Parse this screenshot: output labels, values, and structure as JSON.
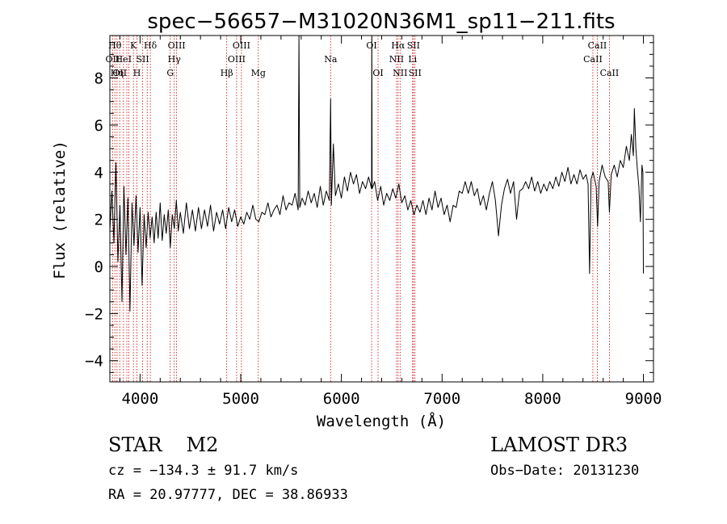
{
  "chart_data": {
    "type": "line",
    "title": "spec−56657−M31020N36M1_sp11−211.fits",
    "xlabel": "Wavelength (Å)",
    "ylabel": "Flux (relative)",
    "xlim": [
      3700,
      9100
    ],
    "ylim": [
      -4.9,
      9.8
    ],
    "x_ticks": [
      4000,
      5000,
      6000,
      7000,
      8000,
      9000
    ],
    "x_tick_labels": [
      "4000",
      "5000",
      "6000",
      "7000",
      "8000",
      "9000"
    ],
    "y_ticks": [
      -4,
      -2,
      0,
      2,
      4,
      6,
      8
    ],
    "y_tick_labels": [
      "−4",
      "−2",
      "0",
      "2",
      "4",
      "6",
      "8"
    ],
    "grid": false,
    "series": [
      {
        "color": "#000000",
        "points": [
          [
            3700,
            1.5
          ],
          [
            3720,
            3.2
          ],
          [
            3740,
            1.0
          ],
          [
            3760,
            4.4
          ],
          [
            3780,
            0.2
          ],
          [
            3800,
            2.6
          ],
          [
            3820,
            -1.5
          ],
          [
            3840,
            3.4
          ],
          [
            3860,
            0.5
          ],
          [
            3880,
            2.9
          ],
          [
            3900,
            -1.9
          ],
          [
            3920,
            2.7
          ],
          [
            3940,
            0.9
          ],
          [
            3960,
            3.0
          ],
          [
            3980,
            0.6
          ],
          [
            4000,
            2.5
          ],
          [
            4020,
            -0.8
          ],
          [
            4040,
            2.2
          ],
          [
            4060,
            0.8
          ],
          [
            4080,
            2.3
          ],
          [
            4100,
            1.2
          ],
          [
            4120,
            2.1
          ],
          [
            4140,
            1.0
          ],
          [
            4160,
            2.3
          ],
          [
            4180,
            1.2
          ],
          [
            4200,
            2.7
          ],
          [
            4220,
            1.1
          ],
          [
            4240,
            2.2
          ],
          [
            4260,
            1.4
          ],
          [
            4280,
            2.4
          ],
          [
            4300,
            0.8
          ],
          [
            4320,
            2.2
          ],
          [
            4340,
            1.6
          ],
          [
            4360,
            2.8
          ],
          [
            4380,
            1.5
          ],
          [
            4400,
            2.3
          ],
          [
            4430,
            1.4
          ],
          [
            4460,
            2.7
          ],
          [
            4490,
            1.6
          ],
          [
            4520,
            2.4
          ],
          [
            4550,
            1.5
          ],
          [
            4580,
            2.5
          ],
          [
            4610,
            1.6
          ],
          [
            4640,
            2.4
          ],
          [
            4670,
            1.7
          ],
          [
            4700,
            2.6
          ],
          [
            4730,
            1.5
          ],
          [
            4760,
            2.3
          ],
          [
            4790,
            1.8
          ],
          [
            4820,
            2.4
          ],
          [
            4850,
            1.6
          ],
          [
            4880,
            2.5
          ],
          [
            4910,
            1.9
          ],
          [
            4940,
            2.4
          ],
          [
            4970,
            1.7
          ],
          [
            5000,
            2.1
          ],
          [
            5030,
            1.8
          ],
          [
            5060,
            2.3
          ],
          [
            5090,
            2.0
          ],
          [
            5120,
            2.6
          ],
          [
            5150,
            2.0
          ],
          [
            5180,
            1.9
          ],
          [
            5210,
            2.3
          ],
          [
            5240,
            2.2
          ],
          [
            5270,
            2.7
          ],
          [
            5300,
            2.1
          ],
          [
            5330,
            2.4
          ],
          [
            5360,
            2.6
          ],
          [
            5390,
            2.2
          ],
          [
            5420,
            3.0
          ],
          [
            5450,
            2.4
          ],
          [
            5480,
            2.7
          ],
          [
            5510,
            2.6
          ],
          [
            5540,
            3.1
          ],
          [
            5570,
            2.4
          ],
          [
            5578,
            9.8
          ],
          [
            5586,
            2.5
          ],
          [
            5610,
            2.9
          ],
          [
            5640,
            2.6
          ],
          [
            5670,
            3.2
          ],
          [
            5700,
            2.7
          ],
          [
            5730,
            3.1
          ],
          [
            5760,
            2.5
          ],
          [
            5790,
            3.4
          ],
          [
            5820,
            2.6
          ],
          [
            5850,
            3.2
          ],
          [
            5880,
            2.8
          ],
          [
            5893,
            7.1
          ],
          [
            5900,
            2.6
          ],
          [
            5920,
            5.2
          ],
          [
            5940,
            3.0
          ],
          [
            5970,
            3.5
          ],
          [
            6000,
            2.9
          ],
          [
            6030,
            3.8
          ],
          [
            6060,
            3.2
          ],
          [
            6090,
            4.0
          ],
          [
            6120,
            3.5
          ],
          [
            6150,
            3.9
          ],
          [
            6180,
            3.1
          ],
          [
            6210,
            3.6
          ],
          [
            6240,
            3.3
          ],
          [
            6270,
            3.8
          ],
          [
            6300,
            3.3
          ],
          [
            6302,
            9.8
          ],
          [
            6305,
            3.3
          ],
          [
            6330,
            3.6
          ],
          [
            6360,
            2.8
          ],
          [
            6390,
            3.4
          ],
          [
            6420,
            2.6
          ],
          [
            6450,
            3.1
          ],
          [
            6480,
            2.8
          ],
          [
            6510,
            3.3
          ],
          [
            6540,
            2.9
          ],
          [
            6570,
            3.5
          ],
          [
            6600,
            2.7
          ],
          [
            6630,
            3.0
          ],
          [
            6660,
            2.4
          ],
          [
            6690,
            2.8
          ],
          [
            6720,
            2.2
          ],
          [
            6750,
            2.6
          ],
          [
            6780,
            2.3
          ],
          [
            6810,
            2.8
          ],
          [
            6840,
            2.2
          ],
          [
            6870,
            2.9
          ],
          [
            6900,
            2.4
          ],
          [
            6930,
            3.2
          ],
          [
            6960,
            2.5
          ],
          [
            6990,
            2.9
          ],
          [
            7020,
            2.2
          ],
          [
            7050,
            2.6
          ],
          [
            7080,
            1.9
          ],
          [
            7110,
            2.6
          ],
          [
            7140,
            2.5
          ],
          [
            7170,
            3.2
          ],
          [
            7200,
            3.1
          ],
          [
            7230,
            3.6
          ],
          [
            7260,
            3.1
          ],
          [
            7290,
            3.6
          ],
          [
            7320,
            3.0
          ],
          [
            7350,
            3.3
          ],
          [
            7380,
            2.6
          ],
          [
            7410,
            3.0
          ],
          [
            7440,
            2.4
          ],
          [
            7470,
            3.1
          ],
          [
            7500,
            3.6
          ],
          [
            7530,
            2.8
          ],
          [
            7560,
            1.3
          ],
          [
            7590,
            2.6
          ],
          [
            7620,
            3.3
          ],
          [
            7650,
            3.7
          ],
          [
            7680,
            3.1
          ],
          [
            7710,
            3.6
          ],
          [
            7740,
            2.0
          ],
          [
            7770,
            3.2
          ],
          [
            7800,
            3.3
          ],
          [
            7830,
            3.6
          ],
          [
            7860,
            3.3
          ],
          [
            7890,
            3.8
          ],
          [
            7920,
            3.2
          ],
          [
            7950,
            3.6
          ],
          [
            7980,
            3.1
          ],
          [
            8010,
            3.5
          ],
          [
            8040,
            3.2
          ],
          [
            8070,
            3.6
          ],
          [
            8100,
            3.3
          ],
          [
            8130,
            3.8
          ],
          [
            8160,
            3.4
          ],
          [
            8190,
            4.0
          ],
          [
            8220,
            3.6
          ],
          [
            8250,
            4.2
          ],
          [
            8280,
            3.5
          ],
          [
            8310,
            3.9
          ],
          [
            8340,
            3.5
          ],
          [
            8370,
            4.1
          ],
          [
            8400,
            3.7
          ],
          [
            8430,
            3.9
          ],
          [
            8450,
            3.5
          ],
          [
            8465,
            -0.3
          ],
          [
            8480,
            3.7
          ],
          [
            8500,
            4.0
          ],
          [
            8530,
            3.4
          ],
          [
            8545,
            1.7
          ],
          [
            8560,
            3.6
          ],
          [
            8590,
            4.3
          ],
          [
            8620,
            3.8
          ],
          [
            8650,
            3.6
          ],
          [
            8662,
            2.3
          ],
          [
            8680,
            3.9
          ],
          [
            8710,
            4.3
          ],
          [
            8740,
            3.8
          ],
          [
            8770,
            4.5
          ],
          [
            8800,
            4.2
          ],
          [
            8830,
            5.1
          ],
          [
            8860,
            4.5
          ],
          [
            8880,
            5.6
          ],
          [
            8900,
            4.7
          ],
          [
            8910,
            6.7
          ],
          [
            8925,
            5.0
          ],
          [
            8940,
            4.1
          ],
          [
            8955,
            3.4
          ],
          [
            8970,
            1.9
          ],
          [
            8985,
            4.3
          ],
          [
            8995,
            4.0
          ],
          [
            9000,
            -0.3
          ]
        ]
      }
    ],
    "line_markers": [
      {
        "x": 3727,
        "label": "OII",
        "row": 1
      },
      {
        "x": 3750,
        "label": "Hθ",
        "row": 0
      },
      {
        "x": 3771,
        "label": "Hη",
        "row": 2
      },
      {
        "x": 3798,
        "label": "OII",
        "row": 2
      },
      {
        "x": 3835,
        "label": "HeI",
        "row": 1
      },
      {
        "x": 3869,
        "label": "",
        "row": 0
      },
      {
        "x": 3889,
        "label": "",
        "row": 0
      },
      {
        "x": 3934,
        "label": "K",
        "row": 0
      },
      {
        "x": 3969,
        "label": "H",
        "row": 2
      },
      {
        "x": 4026,
        "label": "SII",
        "row": 1
      },
      {
        "x": 4071,
        "label": "",
        "row": 0
      },
      {
        "x": 4102,
        "label": "Hδ",
        "row": 0
      },
      {
        "x": 4300,
        "label": "G",
        "row": 2
      },
      {
        "x": 4340,
        "label": "Hγ",
        "row": 1
      },
      {
        "x": 4363,
        "label": "OIII",
        "row": 0
      },
      {
        "x": 4861,
        "label": "Hβ",
        "row": 2
      },
      {
        "x": 4959,
        "label": "OIII",
        "row": 1
      },
      {
        "x": 5007,
        "label": "OIII",
        "row": 0
      },
      {
        "x": 5175,
        "label": "Mg",
        "row": 2
      },
      {
        "x": 5893,
        "label": "Na",
        "row": 1
      },
      {
        "x": 6300,
        "label": "OI",
        "row": 0
      },
      {
        "x": 6364,
        "label": "OI",
        "row": 2
      },
      {
        "x": 6548,
        "label": "NII",
        "row": 1
      },
      {
        "x": 6563,
        "label": "Hα",
        "row": 0
      },
      {
        "x": 6583,
        "label": "NII",
        "row": 2
      },
      {
        "x": 6707,
        "label": "Li",
        "row": 1
      },
      {
        "x": 6716,
        "label": "SII",
        "row": 0
      },
      {
        "x": 6731,
        "label": "SII",
        "row": 2
      },
      {
        "x": 8498,
        "label": "CaII",
        "row": 1
      },
      {
        "x": 8542,
        "label": "CaII",
        "row": 0
      },
      {
        "x": 8662,
        "label": "CaII",
        "row": 2
      }
    ]
  },
  "info": {
    "class_label": "STAR",
    "subclass_label": "M2",
    "survey": "LAMOST DR3",
    "cz": "cz = −134.3 ± 91.7 km/s",
    "obs_date": "Obs−Date: 20131230",
    "coords": "RA =  20.97777, DEC =  38.86933"
  },
  "colors": {
    "marker_line": "#cc0000",
    "spectrum": "#000000"
  }
}
